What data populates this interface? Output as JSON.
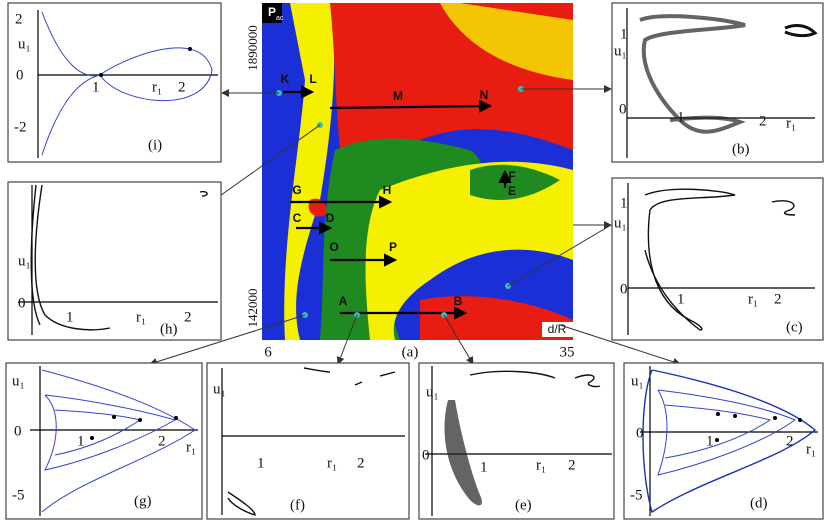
{
  "map": {
    "label": "P",
    "label_sub": "ac",
    "y_top": "1890000",
    "y_bottom": "142000",
    "x_left": "6",
    "x_right": "35",
    "x_axis": "d/R",
    "caption": "(a)",
    "points": [
      "K",
      "L",
      "M",
      "N",
      "G",
      "H",
      "C",
      "D",
      "O",
      "P",
      "F",
      "E",
      "A",
      "B"
    ]
  },
  "panels": {
    "i": {
      "caption": "(i)",
      "y_label": "u₁",
      "x_label": "r₁",
      "ticks": [
        "2",
        "0",
        "-2",
        "1",
        "2"
      ]
    },
    "b": {
      "caption": "(b)",
      "y_label": "u₁",
      "x_label": "r₁",
      "ticks": [
        "1",
        "0",
        "1",
        "2"
      ]
    },
    "h": {
      "caption": "(h)",
      "y_label": "u₁",
      "x_label": "r₁",
      "ticks": [
        "0",
        "1",
        "2"
      ]
    },
    "c": {
      "caption": "(c)",
      "y_label": "u₁",
      "x_label": "r₁",
      "ticks": [
        "1",
        "0",
        "1",
        "2"
      ]
    },
    "g": {
      "caption": "(g)",
      "y_label": "u₁",
      "x_label": "r₁",
      "ticks": [
        "0",
        "-5",
        "1",
        "2"
      ]
    },
    "f": {
      "caption": "(f)",
      "y_label": "u₁",
      "x_label": "r₁",
      "ticks": [
        "1",
        "2"
      ]
    },
    "e": {
      "caption": "(e)",
      "y_label": "u₁",
      "x_label": "r₁",
      "ticks": [
        "0",
        "1",
        "2"
      ]
    },
    "d": {
      "caption": "(d)",
      "y_label": "u₁",
      "x_label": "r₁",
      "ticks": [
        "0",
        "-5",
        "1",
        "2"
      ]
    }
  }
}
